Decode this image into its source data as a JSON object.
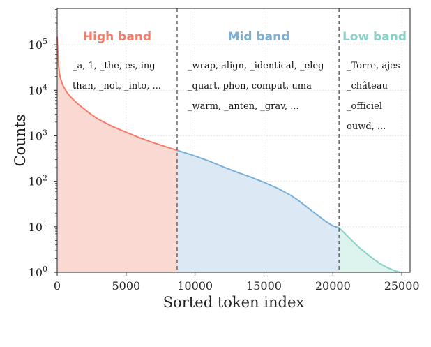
{
  "chart_data": {
    "type": "area",
    "xlabel": "Sorted token index",
    "ylabel": "Counts",
    "xlim": [
      0,
      25600
    ],
    "ylim_log10": [
      0,
      5.8
    ],
    "y_scale": "log",
    "x_ticks": [
      0,
      5000,
      10000,
      15000,
      20000,
      25000
    ],
    "x_tick_labels": [
      "0",
      "5000",
      "10000",
      "15000",
      "20000",
      "25000"
    ],
    "y_ticks_exponent": [
      0,
      1,
      2,
      3,
      4,
      5
    ],
    "y_tick_base": "10",
    "grid": true,
    "dividers": [
      8700,
      20450
    ],
    "series": [
      {
        "name": "High band",
        "color": "#f47c6a",
        "fill": "#fbd9d3",
        "x": [
          0,
          50,
          100,
          200,
          400,
          700,
          1000,
          1500,
          2000,
          2500,
          3000,
          4000,
          5000,
          6000,
          7000,
          8000,
          8700
        ],
        "y": [
          150000,
          60000,
          35000,
          20000,
          13000,
          9000,
          7000,
          5000,
          3800,
          2900,
          2300,
          1600,
          1200,
          900,
          700,
          560,
          480
        ]
      },
      {
        "name": "Mid band",
        "color": "#7ab0d6",
        "fill": "#dce8f3",
        "x": [
          8700,
          10000,
          11000,
          12000,
          13000,
          14000,
          15000,
          16000,
          17000,
          17500,
          18000,
          18500,
          19000,
          19500,
          20000,
          20450
        ],
        "y": [
          480,
          360,
          280,
          210,
          160,
          125,
          95,
          70,
          48,
          38,
          29,
          22,
          17,
          13,
          10.5,
          9.5
        ]
      },
      {
        "name": "Low band",
        "color": "#88d3c8",
        "fill": "#dcf3ee",
        "x": [
          20450,
          21000,
          21500,
          22000,
          22500,
          23000,
          23500,
          24000,
          24500,
          24900
        ],
        "y": [
          9.5,
          6.5,
          4.6,
          3.3,
          2.5,
          1.9,
          1.5,
          1.25,
          1.08,
          1.0
        ]
      }
    ],
    "bands": [
      {
        "title": "High band",
        "color": "#f47c6a",
        "lines": [
          "_a, 1, _the, es, ing",
          "than, _not, _into, ..."
        ]
      },
      {
        "title": "Mid band",
        "color": "#7ab0d6",
        "lines": [
          "_wrap, align, _identical, _eleg",
          "_quart, phon, comput, uma",
          "_warm, _anten, _grav, ..."
        ]
      },
      {
        "title": "Low band",
        "color": "#88d3c8",
        "lines": [
          "_Torre, ajes",
          "_château",
          "_officiel",
          "ouwd, ..."
        ]
      }
    ]
  }
}
